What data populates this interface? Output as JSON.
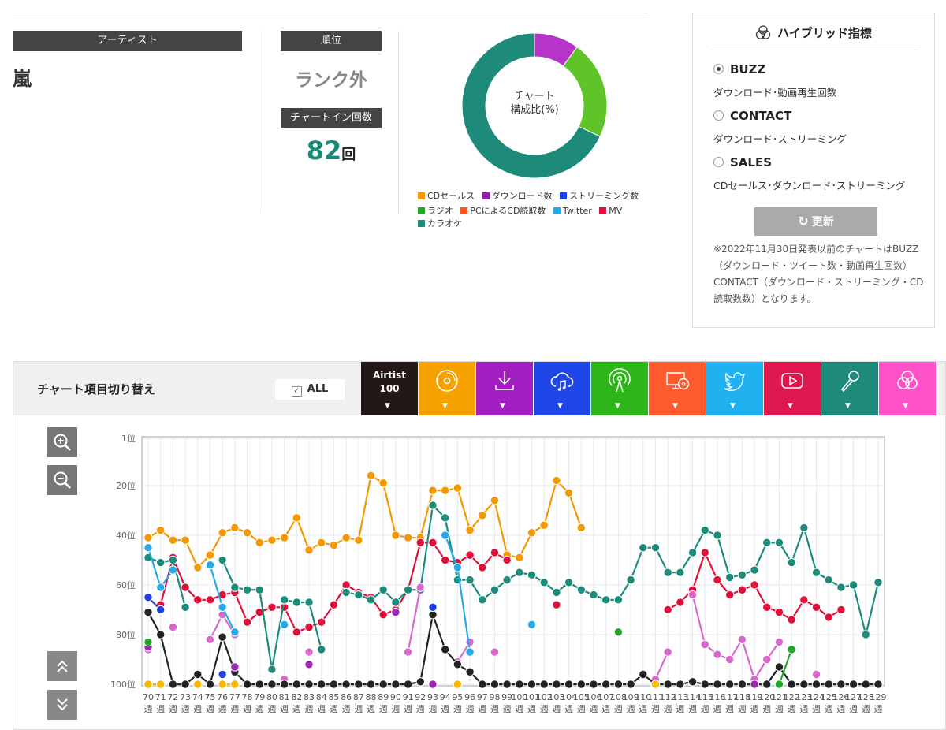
{
  "artist": {
    "header": "アーティスト",
    "name": "嵐"
  },
  "rank": {
    "header": "順位",
    "value": "ランク外"
  },
  "chart_in": {
    "header": "チャートイン回数",
    "value": "82",
    "unit": "回"
  },
  "donut": {
    "center_line1": "チャート",
    "center_line2": "構成比(%)",
    "segments": [
      {
        "name": "ダウンロード数",
        "share": 10,
        "color": "#b734c9"
      },
      {
        "name": "ストリーミング数",
        "share": 22,
        "color": "#5ec428"
      },
      {
        "name": "カラオケ",
        "share": 68,
        "color": "#1e8a7a"
      }
    ]
  },
  "legend": [
    {
      "label": "CDセールス",
      "color": "#f39800"
    },
    {
      "label": "ダウンロード数",
      "color": "#8e24aa"
    },
    {
      "label": "ストリーミング数",
      "color": "#1e40e0"
    },
    {
      "label": "ラジオ",
      "color": "#22a827"
    },
    {
      "label": "PCによるCD読取数",
      "color": "#ff5722"
    },
    {
      "label": "Twitter",
      "color": "#29a8e8"
    },
    {
      "label": "MV",
      "color": "#e0103a"
    },
    {
      "label": "カラオケ",
      "color": "#1e8a7a"
    }
  ],
  "hybrid": {
    "title": "ハイブリッド指標",
    "options": [
      {
        "label": "BUZZ",
        "desc": "ダウンロード･動画再生回数",
        "selected": true
      },
      {
        "label": "CONTACT",
        "desc": "ダウンロード･ストリーミング",
        "selected": false
      },
      {
        "label": "SALES",
        "desc": "CDセールス･ダウンロード･ストリーミング",
        "selected": false
      }
    ],
    "refresh_label": "更新",
    "note": "※2022年11月30日発表以前のチャートはBUZZ（ダウンロード・ツイート数・動画再生回数）CONTACT（ダウンロード・ストリーミング・CD読取数数）となります。"
  },
  "toolbar": {
    "title": "チャート項目切り替え",
    "all_label": "ALL",
    "airtist_line1": "Airtist",
    "airtist_line2": "100",
    "buttons": [
      {
        "icon": "cd-icon",
        "color": "#f5a200"
      },
      {
        "icon": "download-icon",
        "color": "#a11fc0"
      },
      {
        "icon": "streaming-cloud-icon",
        "color": "#1f47e8"
      },
      {
        "icon": "radio-antenna-icon",
        "color": "#2db51a"
      },
      {
        "icon": "pc-cd-icon",
        "color": "#ff5b2e"
      },
      {
        "icon": "twitter-icon",
        "color": "#1fb1f0"
      },
      {
        "icon": "youtube-play-icon",
        "color": "#e0174f"
      },
      {
        "icon": "microphone-icon",
        "color": "#1e8a7a"
      },
      {
        "icon": "hybrid-circles-icon",
        "color": "#ff52c8"
      }
    ]
  },
  "chart_data": {
    "type": "line",
    "y_reversed": true,
    "ylim": [
      1,
      100
    ],
    "y_ticks": [
      "1位",
      "20位",
      "40位",
      "60位",
      "80位",
      "100位"
    ],
    "x_start_week": 70,
    "x_end_week": 129,
    "x_suffix": "週",
    "series": [
      {
        "name": "CDセールス",
        "color": "#f39800",
        "values": [
          41,
          38,
          42,
          42,
          53,
          48,
          39,
          37,
          39,
          43,
          42,
          41,
          33,
          46,
          43,
          44,
          41,
          42,
          16,
          19,
          40,
          41,
          41,
          22,
          22,
          21,
          38,
          32,
          26,
          48,
          49,
          39,
          36,
          18,
          23,
          37,
          null,
          null,
          null,
          null,
          null,
          null,
          null,
          null,
          null,
          null,
          null,
          null,
          null,
          null,
          null,
          null,
          null,
          null,
          null,
          null,
          null,
          null,
          null,
          null
        ]
      },
      {
        "name": "MV",
        "color": "#e0103a",
        "values": [
          null,
          68,
          49,
          61,
          66,
          66,
          64,
          63,
          75,
          71,
          69,
          69,
          79,
          77,
          75,
          68,
          60,
          63,
          65,
          72,
          70,
          62,
          43,
          43,
          50,
          51,
          48,
          53,
          47,
          50,
          null,
          null,
          null,
          68,
          null,
          null,
          null,
          null,
          null,
          null,
          null,
          null,
          70,
          67,
          62,
          47,
          58,
          64,
          62,
          60,
          69,
          71,
          74,
          66,
          69,
          73,
          70,
          null,
          null,
          null
        ]
      },
      {
        "name": "カラオケ",
        "color": "#1e8a7a",
        "values": [
          49,
          51,
          50,
          69,
          null,
          null,
          50,
          61,
          62,
          62,
          94,
          66,
          67,
          67,
          86,
          null,
          63,
          64,
          66,
          62,
          67,
          62,
          62,
          28,
          33,
          58,
          58,
          66,
          62,
          58,
          55,
          56,
          59,
          63,
          59,
          62,
          64,
          66,
          66,
          58,
          45,
          45,
          55,
          55,
          47,
          38,
          40,
          57,
          56,
          54,
          43,
          43,
          51,
          37,
          55,
          58,
          61,
          60,
          80,
          59
        ]
      },
      {
        "name": "ダウンロード数",
        "color": "#d868cc",
        "values": [
          86,
          null,
          77,
          null,
          null,
          82,
          72,
          80,
          null,
          null,
          null,
          98,
          null,
          87,
          null,
          null,
          null,
          null,
          null,
          null,
          null,
          87,
          61,
          null,
          null,
          91,
          83,
          null,
          87,
          null,
          null,
          null,
          null,
          null,
          null,
          null,
          null,
          null,
          null,
          null,
          null,
          98,
          87,
          null,
          64,
          84,
          88,
          90,
          82,
          98,
          90,
          83,
          null,
          null,
          96,
          null,
          null,
          null,
          null,
          null
        ]
      },
      {
        "name": "Twitter",
        "color": "#29a8e8",
        "values": [
          45,
          61,
          54,
          null,
          null,
          52,
          69,
          79,
          null,
          null,
          null,
          76,
          null,
          null,
          null,
          null,
          null,
          null,
          null,
          null,
          null,
          null,
          null,
          null,
          40,
          53,
          87,
          null,
          null,
          null,
          null,
          76,
          null,
          null,
          null,
          null,
          null,
          null,
          null,
          null,
          null,
          null,
          null,
          null,
          null,
          null,
          null,
          null,
          null,
          null,
          null,
          null,
          null,
          null,
          null,
          null,
          null,
          null,
          null,
          null
        ]
      },
      {
        "name": "Airtist 100",
        "color": "#222222",
        "values": [
          71,
          80,
          100,
          100,
          96,
          100,
          81,
          95,
          100,
          100,
          100,
          100,
          100,
          100,
          100,
          100,
          100,
          100,
          100,
          100,
          100,
          100,
          99,
          72,
          86,
          92,
          95,
          100,
          100,
          100,
          100,
          100,
          100,
          100,
          100,
          100,
          100,
          100,
          100,
          100,
          96,
          100,
          100,
          100,
          99,
          100,
          100,
          100,
          100,
          100,
          100,
          93,
          100,
          100,
          100,
          100,
          100,
          100,
          100,
          100
        ]
      },
      {
        "name": "ダウンロード数(紫)",
        "color": "#9c27b0",
        "values": [
          85,
          null,
          null,
          null,
          null,
          null,
          null,
          93,
          null,
          null,
          null,
          null,
          null,
          92,
          null,
          null,
          null,
          null,
          null,
          null,
          71,
          null,
          null,
          100,
          null,
          100,
          null,
          null,
          null,
          null,
          null,
          null,
          null,
          null,
          null,
          null,
          null,
          null,
          null,
          null,
          null,
          null,
          null,
          null,
          null,
          null,
          null,
          null,
          null,
          100,
          null,
          null,
          null,
          null,
          null,
          null,
          null,
          null,
          null,
          null
        ]
      },
      {
        "name": "ストリーミング数",
        "color": "#1e40e0",
        "values": [
          65,
          70,
          null,
          null,
          null,
          null,
          96,
          null,
          null,
          null,
          null,
          null,
          null,
          null,
          null,
          null,
          null,
          null,
          null,
          null,
          null,
          null,
          null,
          69,
          null,
          null,
          null,
          null,
          null,
          null,
          null,
          null,
          null,
          null,
          null,
          null,
          null,
          null,
          null,
          null,
          null,
          null,
          null,
          null,
          null,
          null,
          null,
          null,
          null,
          null,
          null,
          null,
          null,
          null,
          null,
          null,
          null,
          null,
          null,
          null
        ]
      },
      {
        "name": "ラジオ",
        "color": "#22a827",
        "values": [
          83,
          null,
          null,
          null,
          null,
          null,
          null,
          null,
          null,
          null,
          null,
          null,
          null,
          null,
          null,
          null,
          null,
          null,
          null,
          null,
          null,
          null,
          null,
          null,
          null,
          null,
          null,
          null,
          null,
          null,
          null,
          null,
          null,
          null,
          null,
          null,
          null,
          null,
          79,
          null,
          null,
          null,
          null,
          null,
          null,
          null,
          null,
          null,
          null,
          null,
          null,
          100,
          86,
          null,
          null,
          null,
          null,
          null,
          null,
          null
        ]
      },
      {
        "name": "CDセールス(100位)",
        "color": "#f5b800",
        "values": [
          100,
          100,
          null,
          null,
          100,
          null,
          100,
          100,
          null,
          null,
          null,
          null,
          null,
          null,
          null,
          null,
          null,
          null,
          null,
          null,
          null,
          null,
          null,
          null,
          null,
          100,
          null,
          null,
          null,
          null,
          null,
          null,
          null,
          null,
          null,
          null,
          null,
          null,
          null,
          null,
          null,
          100,
          null,
          null,
          null,
          null,
          null,
          null,
          null,
          null,
          null,
          null,
          null,
          null,
          null,
          null,
          null,
          null,
          null,
          null
        ]
      }
    ]
  }
}
